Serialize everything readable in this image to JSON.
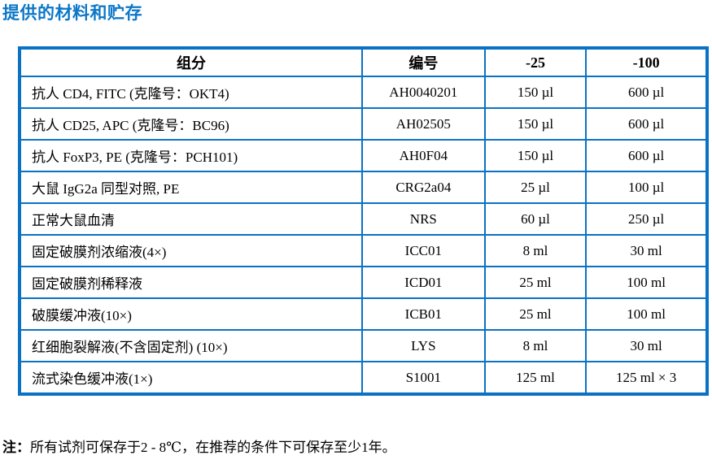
{
  "page": {
    "title": "提供的材料和贮存"
  },
  "table": {
    "headers": [
      "组分",
      "编号",
      "-25",
      "-100"
    ],
    "rows": [
      [
        "抗人 CD4, FITC (克隆号：OKT4)",
        "AH0040201",
        "150 µl",
        "600 µl"
      ],
      [
        "抗人 CD25, APC (克隆号：BC96)",
        "AH02505",
        "150 µl",
        "600 µl"
      ],
      [
        "抗人 FoxP3, PE (克隆号：PCH101)",
        "AH0F04",
        "150 µl",
        "600 µl"
      ],
      [
        "大鼠 IgG2a 同型对照, PE",
        "CRG2a04",
        "25 µl",
        "100 µl"
      ],
      [
        "正常大鼠血清",
        "NRS",
        "60 µl",
        "250 µl"
      ],
      [
        "固定破膜剂浓缩液(4×)",
        "ICC01",
        "8 ml",
        "30 ml"
      ],
      [
        "固定破膜剂稀释液",
        "ICD01",
        "25 ml",
        "100 ml"
      ],
      [
        "破膜缓冲液(10×)",
        "ICB01",
        "25 ml",
        "100 ml"
      ],
      [
        "红细胞裂解液(不含固定剂) (10×)",
        "LYS",
        "8 ml",
        "30 ml"
      ],
      [
        "流式染色缓冲液(1×)",
        "S1001",
        "125 ml",
        "125 ml × 3"
      ]
    ]
  },
  "footnote": {
    "label": "注：",
    "text": "所有试剂可保存于2 - 8℃，在推荐的条件下可保存至少1年。"
  },
  "colors": {
    "title_blue": "#0b77c8",
    "table_border_blue": "#0a72c4",
    "text_black": "#000000"
  }
}
